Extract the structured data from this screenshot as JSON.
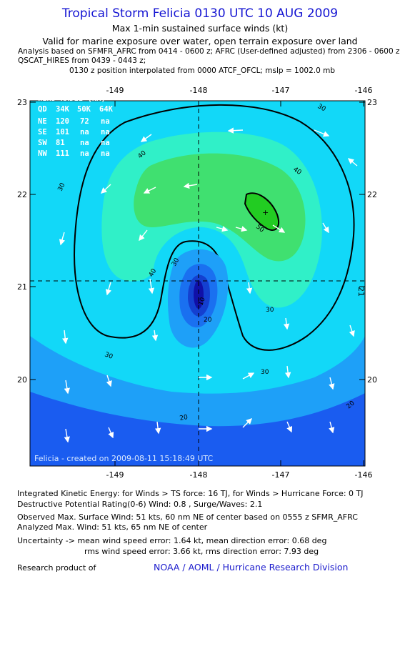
{
  "header": {
    "title": "Tropical Storm Felicia 0130 UTC 10 AUG 2009",
    "subtitle": "Max 1-min sustained surface winds (kt)",
    "validity": "Valid for marine exposure over water, open terrain exposure over land",
    "analysis_line1": "Analysis based on  SFMFR_AFRC from 0414 - 0600 z;  AFRC (User-defined adjusted) from 2306 - 0600 z;",
    "analysis_line2": "QSCAT_HIRES from 0439 - 0443 z;",
    "analysis_line3": "0130 z position interpolated from 0000 ATCF_OFCL; mslp = 1002.0 mb"
  },
  "map": {
    "lon_ticks": [
      "-149",
      "-148",
      "-147",
      "-146"
    ],
    "lat_ticks": [
      "23",
      "22",
      "21",
      "20"
    ],
    "lat_right_mid": "21",
    "wind_radii": {
      "title": "WIND RADII (NM)",
      "header": [
        "QD",
        "34K",
        "50K",
        "64K"
      ],
      "rows": [
        [
          "NE",
          "120",
          "72",
          "na"
        ],
        [
          "SE",
          "101",
          "na",
          "na"
        ],
        [
          "SW",
          "81",
          "na",
          "na"
        ],
        [
          "NW",
          "111",
          "na",
          "na"
        ]
      ]
    },
    "contour_labels": [
      "50",
      "40",
      "40",
      "30",
      "30",
      "40",
      "30",
      "30",
      "20",
      "20",
      "30",
      "10",
      "20",
      "30"
    ],
    "center_marker": "+",
    "footer": "Felicia - created on 2009-08-11 15:18:49 UTC",
    "colors": {
      "ocean_deep": "#1a5cf0",
      "kt20": "#1ea0f8",
      "kt30": "#12d8f8",
      "kt40": "#30f0c8",
      "kt50": "#40e070",
      "kt60": "#22cc22",
      "eye_core": "#1010a8"
    }
  },
  "stats": {
    "ike": "Integrated Kinetic Energy:  for Winds > TS force: 16 TJ,  for Winds > Hurricane Force: 0 TJ",
    "destructive": "Destructive Potential Rating(0-6)   Wind: 0.8 , Surge/Waves: 2.1",
    "observed": "Observed Max. Surface Wind: 51 kts, 60 nm NE of center based on 0555 z SFMR_AFRC",
    "analyzed": "Analyzed Max. Wind: 51 kts, 65 nm NE of center",
    "uncertainty1": "Uncertainty -> mean wind speed error: 1.64 kt,   mean direction error: 0.68 deg",
    "uncertainty2": "rms wind speed error: 3.66 kt,   rms direction error: 7.93 deg",
    "research": "Research product of",
    "org": "NOAA / AOML / Hurricane Research Division"
  }
}
